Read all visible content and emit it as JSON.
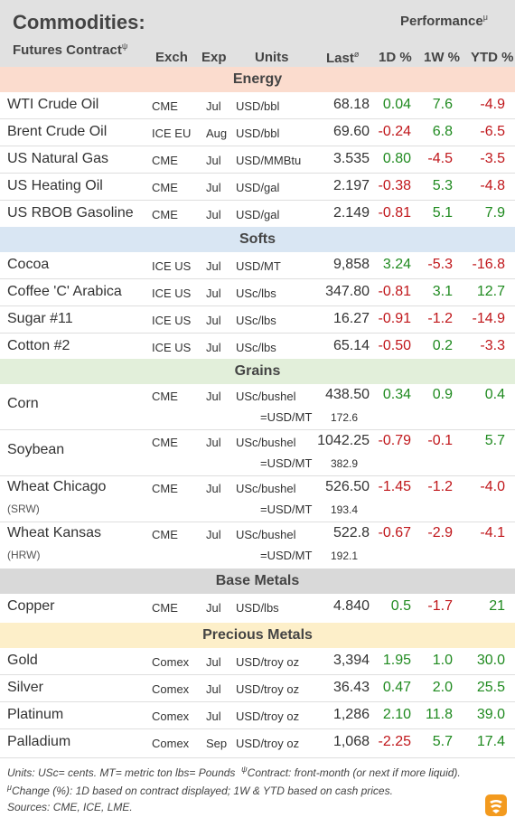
{
  "header": {
    "title": "Commodities:",
    "subtitle": "Futures Contract",
    "subtitle_mark": "ψ",
    "performance": "Performance",
    "performance_mark": "μ",
    "columns": {
      "exch": "Exch",
      "exp": "Exp",
      "units": "Units",
      "last": "Last",
      "last_mark": "ø",
      "d1": "1D %",
      "w1": "1W %",
      "ytd": "YTD %"
    }
  },
  "sections": [
    {
      "title": "Energy",
      "rows": [
        {
          "name": "WTI Crude Oil",
          "exch": "CME",
          "exp": "Jul",
          "units": "USD/bbl",
          "last": "68.18",
          "d1": "0.04",
          "w1": "7.6",
          "ytd": "-4.9"
        },
        {
          "name": "Brent Crude Oil",
          "exch": "ICE EU",
          "exp": "Aug",
          "units": "USD/bbl",
          "last": "69.60",
          "d1": "-0.24",
          "w1": "6.8",
          "ytd": "-6.5"
        },
        {
          "name": "US Natural Gas",
          "exch": "CME",
          "exp": "Jul",
          "units": "USD/MMBtu",
          "last": "3.535",
          "d1": "0.80",
          "w1": "-4.5",
          "ytd": "-3.5"
        },
        {
          "name": "US Heating Oil",
          "exch": "CME",
          "exp": "Jul",
          "units": "USD/gal",
          "last": "2.197",
          "d1": "-0.38",
          "w1": "5.3",
          "ytd": "-4.8"
        },
        {
          "name": "US RBOB Gasoline",
          "exch": "CME",
          "exp": "Jul",
          "units": "USD/gal",
          "last": "2.149",
          "d1": "-0.81",
          "w1": "5.1",
          "ytd": "7.9"
        }
      ]
    },
    {
      "title": "Softs",
      "rows": [
        {
          "name": "Cocoa",
          "exch": "ICE US",
          "exp": "Jul",
          "units": "USD/MT",
          "last": "9,858",
          "d1": "3.24",
          "w1": "-5.3",
          "ytd": "-16.8"
        },
        {
          "name": "Coffee 'C' Arabica",
          "exch": "ICE US",
          "exp": "Jul",
          "units": "USc/lbs",
          "last": "347.80",
          "d1": "-0.81",
          "w1": "3.1",
          "ytd": "12.7"
        },
        {
          "name": "Sugar #11",
          "exch": "ICE US",
          "exp": "Jul",
          "units": "USc/lbs",
          "last": "16.27",
          "d1": "-0.91",
          "w1": "-1.2",
          "ytd": "-14.9"
        },
        {
          "name": "Cotton #2",
          "exch": "ICE US",
          "exp": "Jul",
          "units": "USc/lbs",
          "last": "65.14",
          "d1": "-0.50",
          "w1": "0.2",
          "ytd": "-3.3"
        }
      ]
    },
    {
      "title": "Grains",
      "rows": [
        {
          "name": "Corn",
          "exch": "CME",
          "exp": "Jul",
          "units": "USc/bushel",
          "last": "438.50",
          "d1": "0.34",
          "w1": "0.9",
          "ytd": "0.4",
          "conv_label": "=USD/MT",
          "conv_value": "172.6"
        },
        {
          "name": "Soybean",
          "exch": "CME",
          "exp": "Jul",
          "units": "USc/bushel",
          "last": "1042.25",
          "d1": "-0.79",
          "w1": "-0.1",
          "ytd": "5.7",
          "conv_label": "=USD/MT",
          "conv_value": "382.9"
        },
        {
          "name": "Wheat Chicago",
          "sub": "(SRW)",
          "exch": "CME",
          "exp": "Jul",
          "units": "USc/bushel",
          "last": "526.50",
          "d1": "-1.45",
          "w1": "-1.2",
          "ytd": "-4.0",
          "conv_label": "=USD/MT",
          "conv_value": "193.4"
        },
        {
          "name": "Wheat Kansas",
          "sub": "(HRW)",
          "exch": "CME",
          "exp": "Jul",
          "units": "USc/bushel",
          "last": "522.8",
          "d1": "-0.67",
          "w1": "-2.9",
          "ytd": "-4.1",
          "conv_label": "=USD/MT",
          "conv_value": "192.1"
        }
      ]
    },
    {
      "title": "Base Metals",
      "rows": [
        {
          "name": "Copper",
          "exch": "CME",
          "exp": "Jul",
          "units": "USD/lbs",
          "last": "4.840",
          "d1": "0.5",
          "w1": "-1.7",
          "ytd": "21"
        }
      ]
    },
    {
      "title": "Precious Metals",
      "rows": [
        {
          "name": "Gold",
          "exch": "Comex",
          "exp": "Jul",
          "units": "USD/troy oz",
          "last": "3,394",
          "d1": "1.95",
          "w1": "1.0",
          "ytd": "30.0"
        },
        {
          "name": "Silver",
          "exch": "Comex",
          "exp": "Jul",
          "units": "USD/troy oz",
          "last": "36.43",
          "d1": "0.47",
          "w1": "2.0",
          "ytd": "25.5"
        },
        {
          "name": "Platinum",
          "exch": "Comex",
          "exp": "Jul",
          "units": "USD/troy oz",
          "last": "1,286",
          "d1": "2.10",
          "w1": "11.8",
          "ytd": "39.0"
        },
        {
          "name": "Palladium",
          "exch": "Comex",
          "exp": "Sep",
          "units": "USD/troy oz",
          "last": "1,068",
          "d1": "-2.25",
          "w1": "5.7",
          "ytd": "17.4"
        }
      ]
    }
  ],
  "footer": {
    "line1": "Units: USc= cents.   MT= metric ton    lbs= Pounds",
    "line1_mark": "ψ",
    "line1_b": "Contract: front-month (or next if more liquid).",
    "line2_mark": "μ",
    "line2": "Change (%): 1D based on contract displayed; 1W & YTD based on cash prices.",
    "line3": "Sources: CME, ICE, LME."
  },
  "colors": {
    "positive": "#1f8a1f",
    "negative": "#c0171b",
    "logo": "#f39a1e"
  },
  "logo_icon": "brand-logo-icon"
}
